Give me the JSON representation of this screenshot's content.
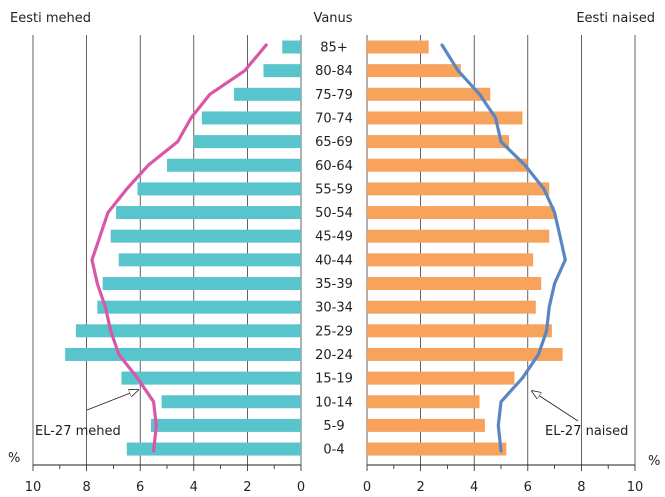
{
  "chart_data": {
    "type": "bar",
    "subtype": "population-pyramid",
    "title": "",
    "left_label": "Eesti mehed",
    "center_label": "Vanus",
    "right_label": "Eesti naised",
    "unit_left": "%",
    "unit_right": "%",
    "categories": [
      "85+",
      "80-84",
      "75-79",
      "70-74",
      "65-69",
      "60-64",
      "55-59",
      "50-54",
      "45-49",
      "40-44",
      "35-39",
      "30-34",
      "25-29",
      "20-24",
      "15-19",
      "10-14",
      "5-9",
      "0-4"
    ],
    "left_ticks": [
      "10",
      "8",
      "6",
      "4",
      "2",
      "0"
    ],
    "right_ticks": [
      "0",
      "2",
      "4",
      "6",
      "8",
      "10"
    ],
    "xlim": [
      0,
      10
    ],
    "grid": true,
    "series": [
      {
        "name": "Eesti mehed",
        "kind": "bar",
        "side": "left",
        "color": "#57c5cb",
        "values": [
          0.7,
          1.4,
          2.5,
          3.7,
          4.0,
          5.0,
          6.1,
          6.9,
          7.1,
          6.8,
          7.4,
          7.6,
          8.4,
          8.8,
          6.7,
          5.2,
          5.6,
          6.5
        ]
      },
      {
        "name": "Eesti naised",
        "kind": "bar",
        "side": "right",
        "color": "#f7a35c",
        "values": [
          2.3,
          3.5,
          4.6,
          5.8,
          5.3,
          6.0,
          6.8,
          7.0,
          6.8,
          6.2,
          6.5,
          6.3,
          6.9,
          7.3,
          5.5,
          4.2,
          4.4,
          5.2
        ]
      },
      {
        "name": "EL-27 mehed",
        "kind": "line",
        "side": "left",
        "color": "#d957a8",
        "values": [
          1.3,
          2.1,
          3.4,
          4.1,
          4.6,
          5.7,
          6.5,
          7.2,
          7.5,
          7.8,
          7.6,
          7.3,
          7.1,
          6.8,
          6.1,
          5.5,
          5.4,
          5.5
        ]
      },
      {
        "name": "EL-27 naised",
        "kind": "line",
        "side": "right",
        "color": "#5b86c4",
        "values": [
          2.8,
          3.4,
          4.2,
          4.8,
          5.0,
          5.9,
          6.6,
          7.0,
          7.2,
          7.4,
          7.0,
          6.8,
          6.7,
          6.4,
          5.8,
          5.0,
          4.9,
          5.0
        ]
      }
    ],
    "annotations": [
      "EL-27 mehed",
      "EL-27 naised"
    ]
  }
}
